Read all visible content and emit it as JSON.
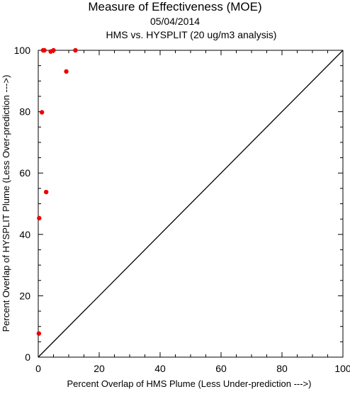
{
  "chart_data": {
    "type": "scatter",
    "title": "Measure of Effectiveness (MOE)",
    "subtitle_lines": [
      "05/04/2014",
      "HMS vs. HYSPLIT  (20 ug/m3 analysis)"
    ],
    "xlabel": "Percent Overlap of HMS Plume (Less Under-prediction --->)",
    "ylabel": "Percent Overlap of HYSPLIT Plume (Less Over-prediction --->)",
    "xlim": [
      0,
      100
    ],
    "ylim": [
      0,
      100
    ],
    "xticks": [
      0,
      20,
      40,
      60,
      80,
      100
    ],
    "yticks": [
      0,
      20,
      40,
      60,
      80,
      100
    ],
    "grid": false,
    "reference_line": {
      "x": [
        0,
        100
      ],
      "y": [
        0,
        100
      ],
      "color": "#000000"
    },
    "series": [
      {
        "color": "#ee0000",
        "points": [
          {
            "x": 0.2,
            "y": 7.7
          },
          {
            "x": 0.3,
            "y": 45.3
          },
          {
            "x": 1.2,
            "y": 79.8
          },
          {
            "x": 1.6,
            "y": 100
          },
          {
            "x": 2.0,
            "y": 100
          },
          {
            "x": 2.6,
            "y": 53.8
          },
          {
            "x": 4.1,
            "y": 99.6
          },
          {
            "x": 5.0,
            "y": 100
          },
          {
            "x": 9.2,
            "y": 93.1
          },
          {
            "x": 12.2,
            "y": 100
          }
        ]
      }
    ]
  }
}
